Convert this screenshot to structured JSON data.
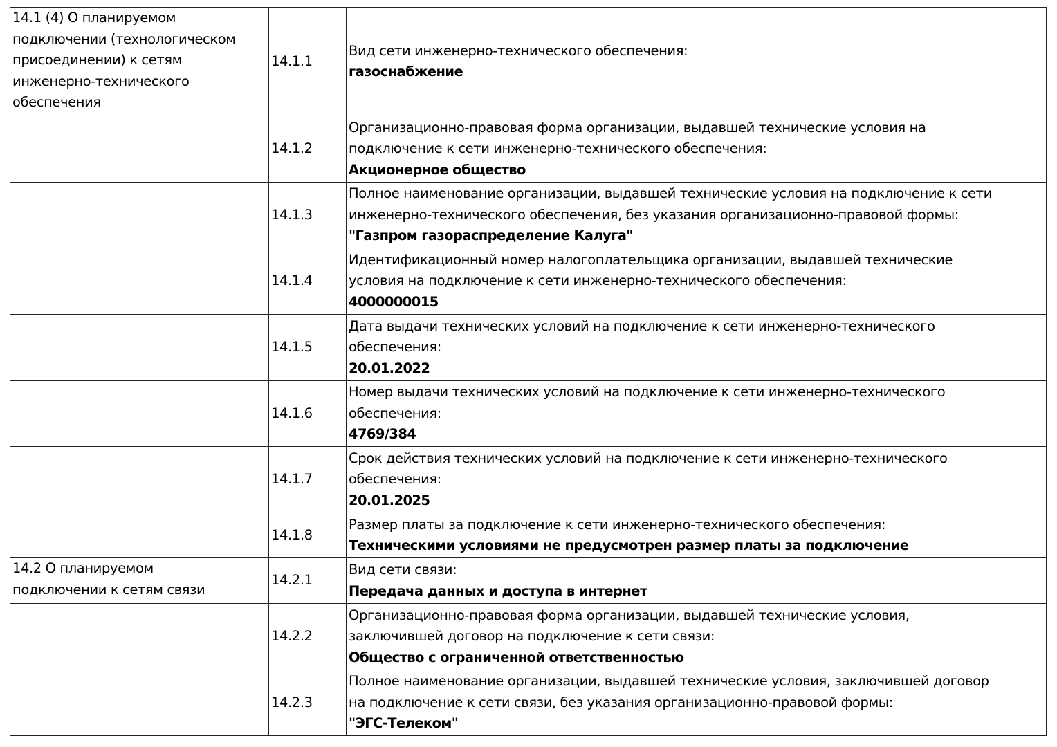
{
  "rows": [
    {
      "section": "14.1 (4) О планируемом\nподключении (технологическом\nприсоединении) к сетям\nинженерно-технического\nобеспечения",
      "num": "14.1.1",
      "label": "Вид сети инженерно-технического обеспечения:",
      "value": "газоснабжение"
    },
    {
      "section": "",
      "num": "14.1.2",
      "label": "Организационно-правовая форма организации, выдавшей технические условия на\nподключение к сети инженерно-технического обеспечения:",
      "value": "Акционерное общество"
    },
    {
      "section": "",
      "num": "14.1.3",
      "label": "Полное наименование организации, выдавшей технические условия на подключение к сети\nинженерно-технического обеспечения, без указания организационно-правовой формы:",
      "value": "\"Газпром газораспределение Калуга\""
    },
    {
      "section": "",
      "num": "14.1.4",
      "label": "Идентификационный номер налогоплательщика организации, выдавшей технические\nусловия на подключение к сети инженерно-технического обеспечения:",
      "value": "4000000015"
    },
    {
      "section": "",
      "num": "14.1.5",
      "label": "Дата выдачи технических условий на подключение к сети инженерно-технического\nобеспечения:",
      "value": "20.01.2022"
    },
    {
      "section": "",
      "num": "14.1.6",
      "label": "Номер выдачи технических условий на подключение к сети инженерно-технического\nобеспечения:",
      "value": "4769/384"
    },
    {
      "section": "",
      "num": "14.1.7",
      "label": "Срок действия технических условий на подключение к сети инженерно-технического\nобеспечения:",
      "value": "20.01.2025"
    },
    {
      "section": "",
      "num": "14.1.8",
      "label": "Размер платы за подключение к сети инженерно-технического обеспечения:",
      "value": "Техническими условиями не предусмотрен размер платы за подключение"
    },
    {
      "section": "14.2 О планируемом\nподключении к сетям связи",
      "num": "14.2.1",
      "label": "Вид сети связи:",
      "value": "Передача данных и доступа в интернет"
    },
    {
      "section": "",
      "num": "14.2.2",
      "label": "Организационно-правовая форма организации, выдавшей технические условия,\nзаключившей договор на подключение к сети связи:",
      "value": "Общество с ограниченной ответственностью"
    },
    {
      "section": "",
      "num": "14.2.3",
      "label": "Полное наименование организации, выдавшей технические условия, заключившей договор\nна подключение к сети связи, без указания организационно-правовой формы:",
      "value": "\"ЭГС-Телеком\""
    }
  ]
}
